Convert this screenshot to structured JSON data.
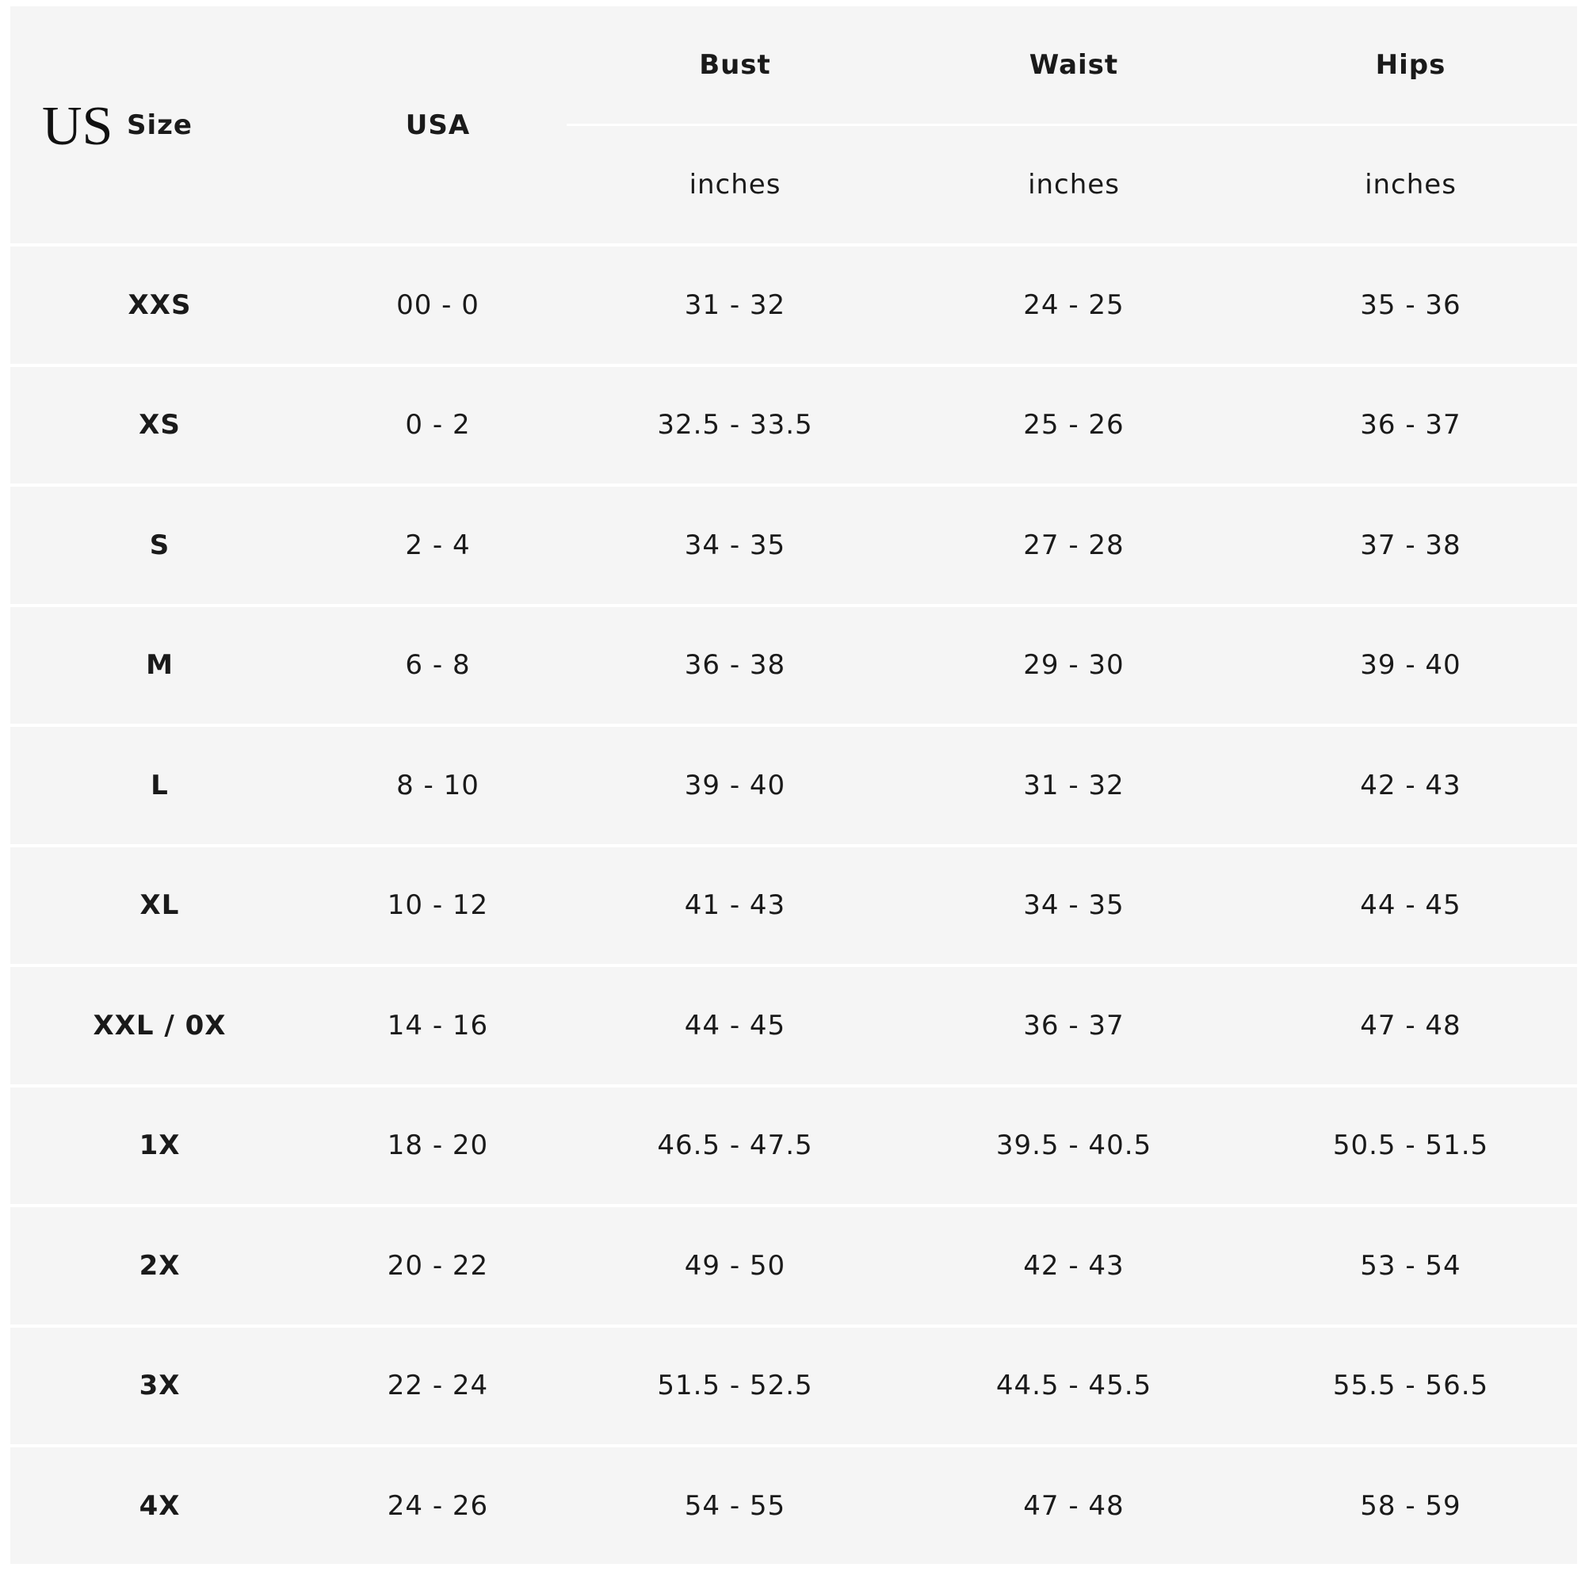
{
  "region_label": "US",
  "header": {
    "size": "Size",
    "usa": "USA",
    "measurements": [
      {
        "label": "Bust",
        "unit": "inches"
      },
      {
        "label": "Waist",
        "unit": "inches"
      },
      {
        "label": "Hips",
        "unit": "inches"
      }
    ]
  },
  "rows": [
    [
      "XXS",
      "00 - 0",
      "31 - 32",
      "24 - 25",
      "35 - 36"
    ],
    [
      "XS",
      "0 - 2",
      "32.5 - 33.5",
      "25 - 26",
      "36 - 37"
    ],
    [
      "S",
      "2 - 4",
      "34 - 35",
      "27 - 28",
      "37 - 38"
    ],
    [
      "M",
      "6 - 8",
      "36 - 38",
      "29 - 30",
      "39 - 40"
    ],
    [
      "L",
      "8 - 10",
      "39 - 40",
      "31 - 32",
      "42 - 43"
    ],
    [
      "XL",
      "10 - 12",
      "41 - 43",
      "34 - 35",
      "44 - 45"
    ],
    [
      "XXL / 0X",
      "14 - 16",
      "44 - 45",
      "36 - 37",
      "47 - 48"
    ],
    [
      "1X",
      "18 - 20",
      "46.5 - 47.5",
      "39.5 - 40.5",
      "50.5 - 51.5"
    ],
    [
      "2X",
      "20 - 22",
      "49 - 50",
      "42 - 43",
      "53 - 54"
    ],
    [
      "3X",
      "22 - 24",
      "51.5 - 52.5",
      "44.5 - 45.5",
      "55.5 - 56.5"
    ],
    [
      "4X",
      "24 - 26",
      "54 - 55",
      "47 - 48",
      "58 - 59"
    ]
  ],
  "colors": {
    "background": "#f5f5f5",
    "divider": "#ffffff",
    "text": "#1a1a1a"
  }
}
